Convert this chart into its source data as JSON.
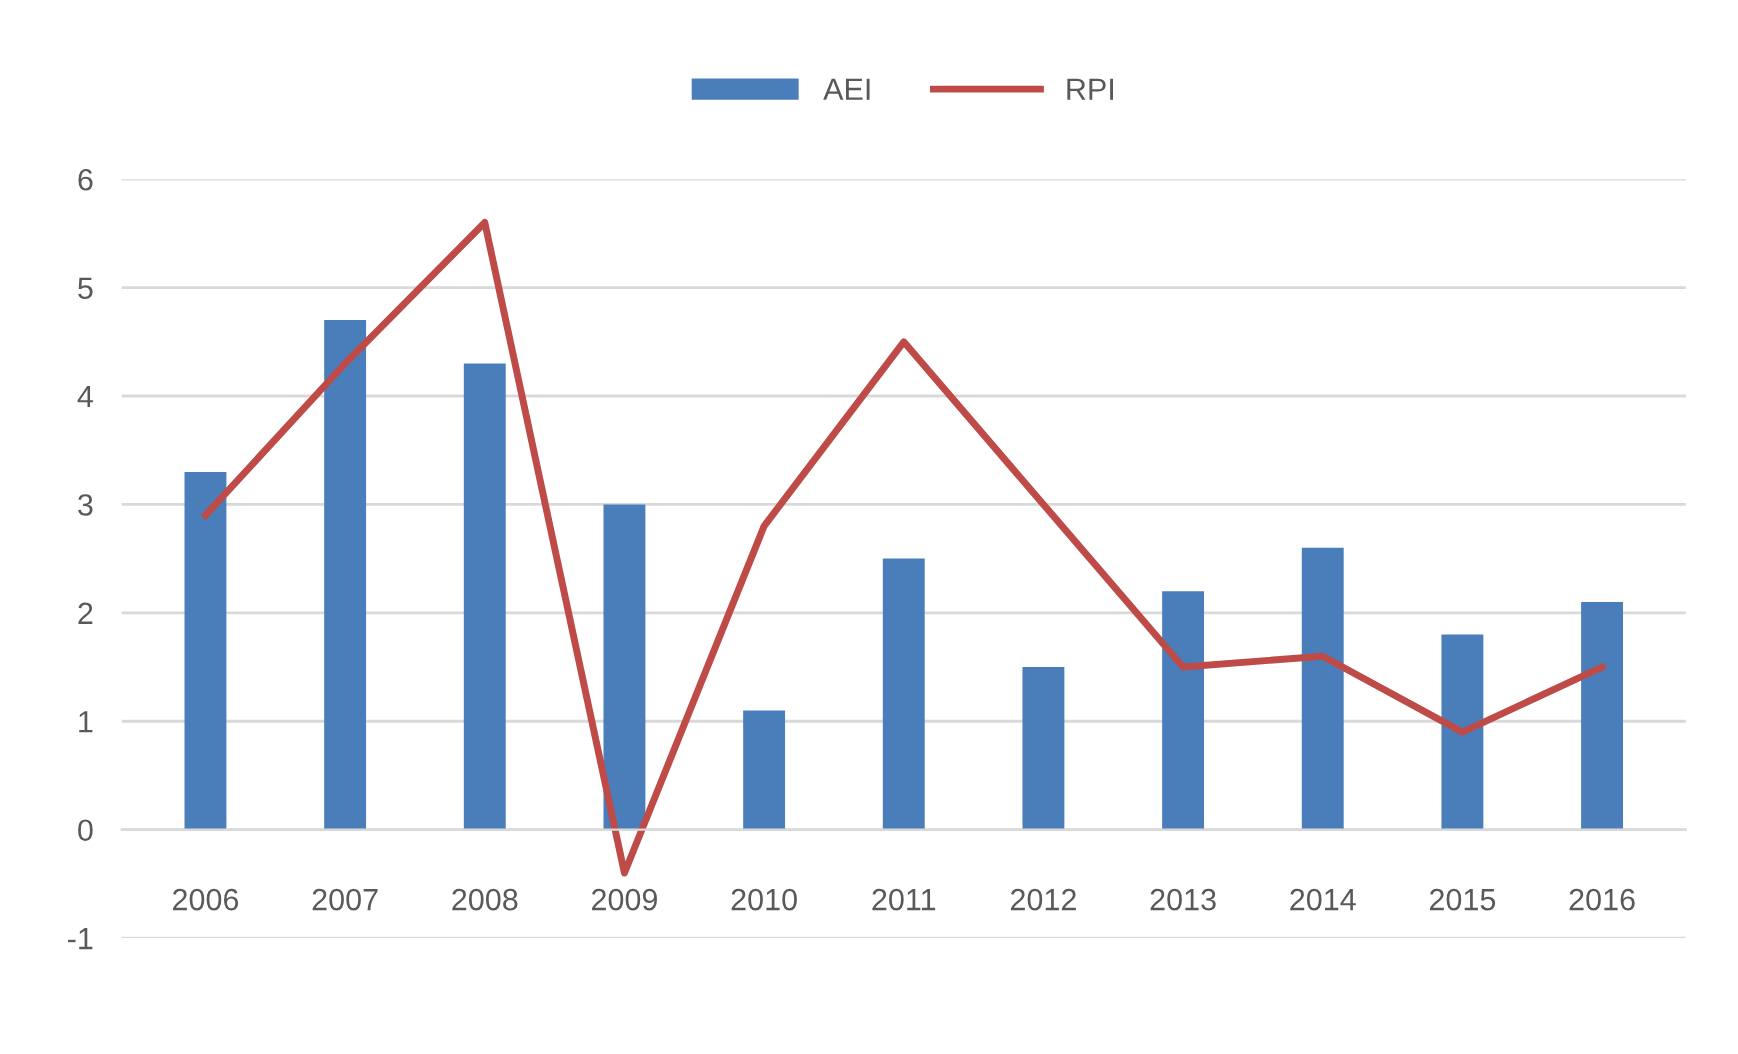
{
  "chart_data": {
    "type": "bar",
    "categories": [
      "2006",
      "2007",
      "2008",
      "2009",
      "2010",
      "2011",
      "2012",
      "2013",
      "2014",
      "2015",
      "2016"
    ],
    "series": [
      {
        "name": "AEI",
        "color": "#4a7ebb",
        "values": [
          3.3,
          4.7,
          4.3,
          3.0,
          1.1,
          2.5,
          1.5,
          2.2,
          2.6,
          1.8,
          2.1
        ]
      },
      {
        "name": "RPI",
        "type": "line",
        "color": "#be4b48",
        "values": [
          2.9,
          4.3,
          5.6,
          -0.4,
          2.8,
          4.5,
          3.0,
          1.5,
          1.6,
          0.9,
          1.5
        ]
      }
    ],
    "ylim": [
      -1,
      6
    ],
    "yticks": [
      -1,
      0,
      1,
      2,
      3,
      4,
      5,
      6
    ],
    "grid": "y",
    "legend": "top",
    "line_style": "solid",
    "marker": "none"
  }
}
